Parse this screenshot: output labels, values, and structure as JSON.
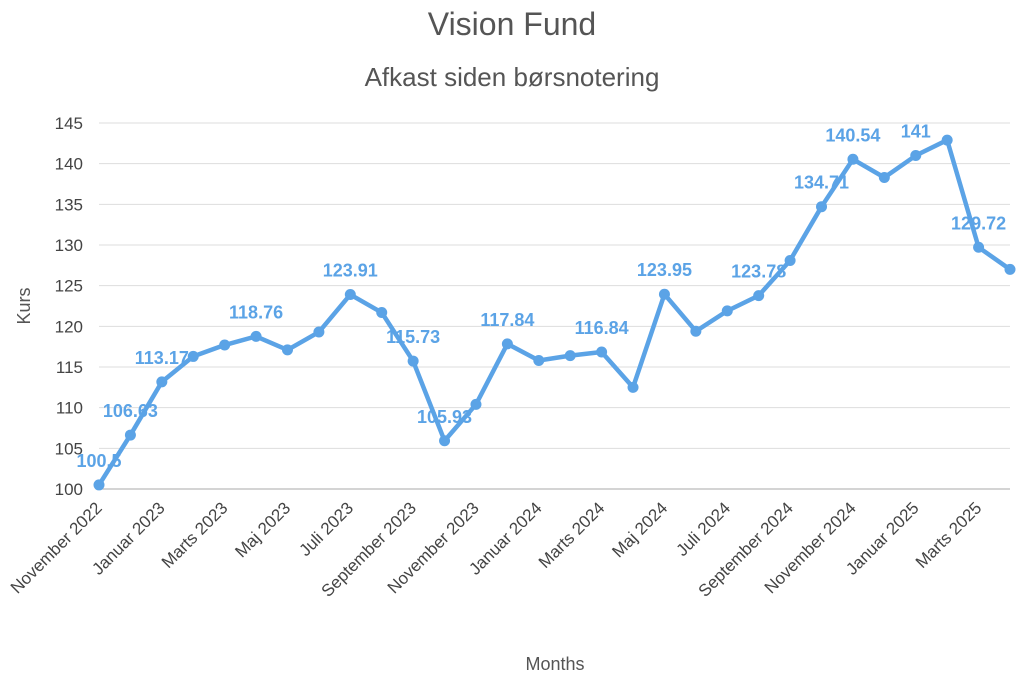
{
  "chart_data": {
    "type": "line",
    "title": "Vision Fund",
    "subtitle": "Afkast siden børsnotering",
    "xlabel": "Months",
    "ylabel": "Kurs",
    "ylim": [
      100,
      145
    ],
    "yticks": [
      100,
      105,
      110,
      115,
      120,
      125,
      130,
      135,
      140,
      145
    ],
    "grid": true,
    "line_color": "#5ba3e6",
    "x": [
      "November 2022",
      "December 2022",
      "Januar 2023",
      "Februar 2023",
      "Marts 2023",
      "April 2023",
      "Maj 2023",
      "Juni 2023",
      "Juli 2023",
      "August 2023",
      "September 2023",
      "Oktober 2023",
      "November 2023",
      "December 2023",
      "Januar 2024",
      "Februar 2024",
      "Marts 2024",
      "April 2024",
      "Maj 2024",
      "Juni 2024",
      "Juli 2024",
      "August 2024",
      "September 2024",
      "Oktober 2024",
      "November 2024",
      "December 2024",
      "Januar 2025",
      "Februar 2025",
      "Marts 2025",
      "April 2025"
    ],
    "x_tick_labels": [
      "November 2022",
      "Januar 2023",
      "Marts 2023",
      "Maj 2023",
      "Juli 2023",
      "September 2023",
      "November 2023",
      "Januar 2024",
      "Marts 2024",
      "Maj 2024",
      "Juli 2024",
      "September 2024",
      "November 2024",
      "Januar 2025",
      "Marts 2025"
    ],
    "series": [
      {
        "values": [
          100.5,
          106.63,
          113.17,
          116.3,
          117.7,
          118.76,
          117.1,
          119.3,
          123.91,
          121.7,
          115.73,
          105.93,
          110.4,
          117.84,
          115.8,
          116.4,
          116.84,
          112.5,
          123.95,
          119.4,
          121.9,
          123.78,
          128.1,
          134.71,
          140.54,
          138.3,
          141,
          142.9,
          129.72,
          127.0
        ],
        "labels": [
          "100.5",
          "106.63",
          "113.17",
          "",
          "",
          "118.76",
          "",
          "",
          "123.91",
          "",
          "115.73",
          "105.93",
          "",
          "117.84",
          "",
          "",
          "116.84",
          "",
          "123.95",
          "",
          "",
          "123.78",
          "",
          "134.71",
          "140.54",
          "",
          "141",
          "",
          "129.72",
          ""
        ]
      }
    ]
  }
}
